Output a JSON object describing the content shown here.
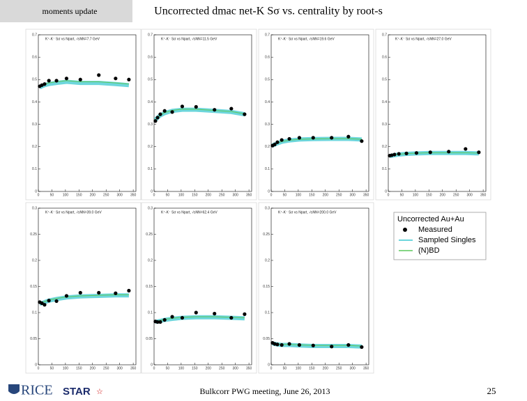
{
  "header": {
    "section": "moments update",
    "title": "Uncorrected dmac net-K Sσ vs. centrality by root-s"
  },
  "footer": {
    "meeting": "Bulkcorr PWG meeting, June 26, 2013",
    "page": "25",
    "logos": [
      "RICE",
      "STAR"
    ]
  },
  "legend": {
    "title": "Uncorrected Au+Au"
  },
  "chart_data": [
    {
      "type": "scatter",
      "title": "K⁺-K⁻ Sσ vs Npart, √sNN=7.7 GeV",
      "x": [
        5,
        13,
        23,
        39,
        67,
        104,
        155,
        223,
        285,
        334
      ],
      "xlim": [
        0,
        360
      ],
      "xticks": [
        0,
        50,
        100,
        150,
        200,
        250,
        300,
        350
      ],
      "ylim": [
        0,
        0.7
      ],
      "yticks": [
        0,
        0.1,
        0.2,
        0.3,
        0.4,
        0.5,
        0.6,
        0.7
      ],
      "series": [
        {
          "name": "Measured",
          "color": "#000000",
          "style": "points",
          "values": [
            0.47,
            0.475,
            0.48,
            0.495,
            0.495,
            0.505,
            0.5,
            0.52,
            0.505,
            0.5
          ]
        },
        {
          "name": "Sampled Singles",
          "color": "#3cc8d0",
          "style": "band",
          "values": [
            0.465,
            0.47,
            0.475,
            0.48,
            0.485,
            0.49,
            0.485,
            0.485,
            0.48,
            0.475
          ]
        },
        {
          "name": "(N)BD",
          "color": "#5cc85c",
          "style": "line",
          "values": [
            0.47,
            0.475,
            0.48,
            0.485,
            0.49,
            0.495,
            0.49,
            0.49,
            0.485,
            0.48
          ]
        }
      ]
    },
    {
      "type": "scatter",
      "title": "K⁺-K⁻ Sσ vs Npart, √sNN=11.5 GeV",
      "x": [
        5,
        13,
        23,
        39,
        67,
        104,
        155,
        223,
        285,
        334
      ],
      "xlim": [
        0,
        360
      ],
      "xticks": [
        0,
        50,
        100,
        150,
        200,
        250,
        300,
        350
      ],
      "ylim": [
        0,
        0.7
      ],
      "yticks": [
        0,
        0.1,
        0.2,
        0.3,
        0.4,
        0.5,
        0.6,
        0.7
      ],
      "series": [
        {
          "name": "Measured",
          "color": "#000000",
          "style": "points",
          "values": [
            0.315,
            0.33,
            0.345,
            0.36,
            0.355,
            0.38,
            0.378,
            0.365,
            0.37,
            0.345
          ]
        },
        {
          "name": "Sampled Singles",
          "color": "#3cc8d0",
          "style": "band",
          "values": [
            0.32,
            0.33,
            0.34,
            0.35,
            0.36,
            0.365,
            0.365,
            0.36,
            0.355,
            0.345
          ]
        },
        {
          "name": "(N)BD",
          "color": "#5cc85c",
          "style": "line",
          "values": [
            0.32,
            0.33,
            0.34,
            0.352,
            0.362,
            0.368,
            0.367,
            0.362,
            0.357,
            0.347
          ]
        }
      ]
    },
    {
      "type": "scatter",
      "title": "K⁺-K⁻ Sσ vs Npart, √sNN=19.6 GeV",
      "x": [
        5,
        13,
        23,
        39,
        67,
        104,
        155,
        223,
        285,
        334
      ],
      "xlim": [
        0,
        360
      ],
      "xticks": [
        0,
        50,
        100,
        150,
        200,
        250,
        300,
        350
      ],
      "ylim": [
        0,
        0.7
      ],
      "yticks": [
        0,
        0.1,
        0.2,
        0.3,
        0.4,
        0.5,
        0.6,
        0.7
      ],
      "series": [
        {
          "name": "Measured",
          "color": "#000000",
          "style": "points",
          "values": [
            0.205,
            0.21,
            0.22,
            0.23,
            0.235,
            0.24,
            0.24,
            0.24,
            0.245,
            0.225
          ]
        },
        {
          "name": "Sampled Singles",
          "color": "#3cc8d0",
          "style": "band",
          "values": [
            0.205,
            0.21,
            0.215,
            0.222,
            0.228,
            0.232,
            0.234,
            0.235,
            0.235,
            0.232
          ]
        },
        {
          "name": "(N)BD",
          "color": "#5cc85c",
          "style": "line",
          "values": [
            0.206,
            0.211,
            0.216,
            0.223,
            0.229,
            0.233,
            0.235,
            0.236,
            0.236,
            0.233
          ]
        }
      ]
    },
    {
      "type": "scatter",
      "title": "K⁺-K⁻ Sσ vs Npart, √sNN=27.0 GeV",
      "x": [
        5,
        13,
        23,
        39,
        67,
        104,
        155,
        223,
        285,
        334
      ],
      "xlim": [
        0,
        360
      ],
      "xticks": [
        0,
        50,
        100,
        150,
        200,
        250,
        300,
        350
      ],
      "ylim": [
        0,
        0.7
      ],
      "yticks": [
        0,
        0.1,
        0.2,
        0.3,
        0.4,
        0.5,
        0.6,
        0.7
      ],
      "series": [
        {
          "name": "Measured",
          "color": "#000000",
          "style": "points",
          "values": [
            0.16,
            0.162,
            0.165,
            0.168,
            0.17,
            0.172,
            0.175,
            0.178,
            0.19,
            0.175
          ]
        },
        {
          "name": "Sampled Singles",
          "color": "#3cc8d0",
          "style": "band",
          "values": [
            0.158,
            0.16,
            0.162,
            0.165,
            0.168,
            0.17,
            0.172,
            0.172,
            0.172,
            0.17
          ]
        },
        {
          "name": "(N)BD",
          "color": "#5cc85c",
          "style": "line",
          "values": [
            0.159,
            0.161,
            0.163,
            0.166,
            0.169,
            0.171,
            0.173,
            0.173,
            0.173,
            0.171
          ]
        }
      ]
    },
    {
      "type": "scatter",
      "title": "K⁺-K⁻ Sσ vs Npart, √sNN=39.0 GeV",
      "x": [
        5,
        13,
        23,
        39,
        67,
        104,
        155,
        223,
        285,
        334
      ],
      "xlim": [
        0,
        360
      ],
      "xticks": [
        0,
        50,
        100,
        150,
        200,
        250,
        300,
        350
      ],
      "ylim": [
        0,
        0.3
      ],
      "yticks": [
        0,
        0.05,
        0.1,
        0.15,
        0.2,
        0.25,
        0.3
      ],
      "series": [
        {
          "name": "Measured",
          "color": "#000000",
          "style": "points",
          "values": [
            0.12,
            0.118,
            0.115,
            0.123,
            0.122,
            0.132,
            0.138,
            0.138,
            0.137,
            0.142
          ]
        },
        {
          "name": "Sampled Singles",
          "color": "#3cc8d0",
          "style": "band",
          "values": [
            0.117,
            0.118,
            0.12,
            0.123,
            0.126,
            0.129,
            0.131,
            0.132,
            0.133,
            0.133
          ]
        },
        {
          "name": "(N)BD",
          "color": "#5cc85c",
          "style": "line",
          "values": [
            0.118,
            0.119,
            0.121,
            0.124,
            0.127,
            0.13,
            0.132,
            0.133,
            0.134,
            0.134
          ]
        }
      ]
    },
    {
      "type": "scatter",
      "title": "K⁺-K⁻ Sσ vs Npart, √sNN=62.4 GeV",
      "x": [
        5,
        13,
        23,
        39,
        67,
        104,
        155,
        223,
        285,
        334
      ],
      "xlim": [
        0,
        360
      ],
      "xticks": [
        0,
        50,
        100,
        150,
        200,
        250,
        300,
        350
      ],
      "ylim": [
        0,
        0.3
      ],
      "yticks": [
        0,
        0.05,
        0.1,
        0.15,
        0.2,
        0.25,
        0.3
      ],
      "series": [
        {
          "name": "Measured",
          "color": "#000000",
          "style": "points",
          "values": [
            0.083,
            0.082,
            0.082,
            0.086,
            0.092,
            0.09,
            0.1,
            0.098,
            0.09,
            0.097
          ]
        },
        {
          "name": "Sampled Singles",
          "color": "#3cc8d0",
          "style": "band",
          "values": [
            0.082,
            0.083,
            0.084,
            0.086,
            0.088,
            0.09,
            0.091,
            0.091,
            0.09,
            0.089
          ]
        },
        {
          "name": "(N)BD",
          "color": "#5cc85c",
          "style": "line",
          "values": [
            0.083,
            0.084,
            0.085,
            0.087,
            0.089,
            0.091,
            0.092,
            0.092,
            0.091,
            0.09
          ]
        }
      ]
    },
    {
      "type": "scatter",
      "title": "K⁺-K⁻ Sσ vs Npart, √sNN=200.0 GeV",
      "x": [
        5,
        13,
        23,
        39,
        67,
        104,
        155,
        223,
        285,
        334
      ],
      "xlim": [
        0,
        360
      ],
      "xticks": [
        0,
        50,
        100,
        150,
        200,
        250,
        300,
        350
      ],
      "ylim": [
        0,
        0.3
      ],
      "yticks": [
        0,
        0.05,
        0.1,
        0.15,
        0.2,
        0.25,
        0.3
      ],
      "series": [
        {
          "name": "Measured",
          "color": "#000000",
          "style": "points",
          "values": [
            0.042,
            0.04,
            0.039,
            0.038,
            0.04,
            0.038,
            0.037,
            0.035,
            0.038,
            0.034
          ]
        },
        {
          "name": "Sampled Singles",
          "color": "#3cc8d0",
          "style": "band",
          "values": [
            0.041,
            0.04,
            0.039,
            0.038,
            0.038,
            0.037,
            0.036,
            0.036,
            0.036,
            0.035
          ]
        },
        {
          "name": "(N)BD",
          "color": "#5cc85c",
          "style": "line",
          "values": [
            0.042,
            0.041,
            0.04,
            0.039,
            0.039,
            0.038,
            0.037,
            0.037,
            0.037,
            0.036
          ]
        }
      ]
    }
  ]
}
